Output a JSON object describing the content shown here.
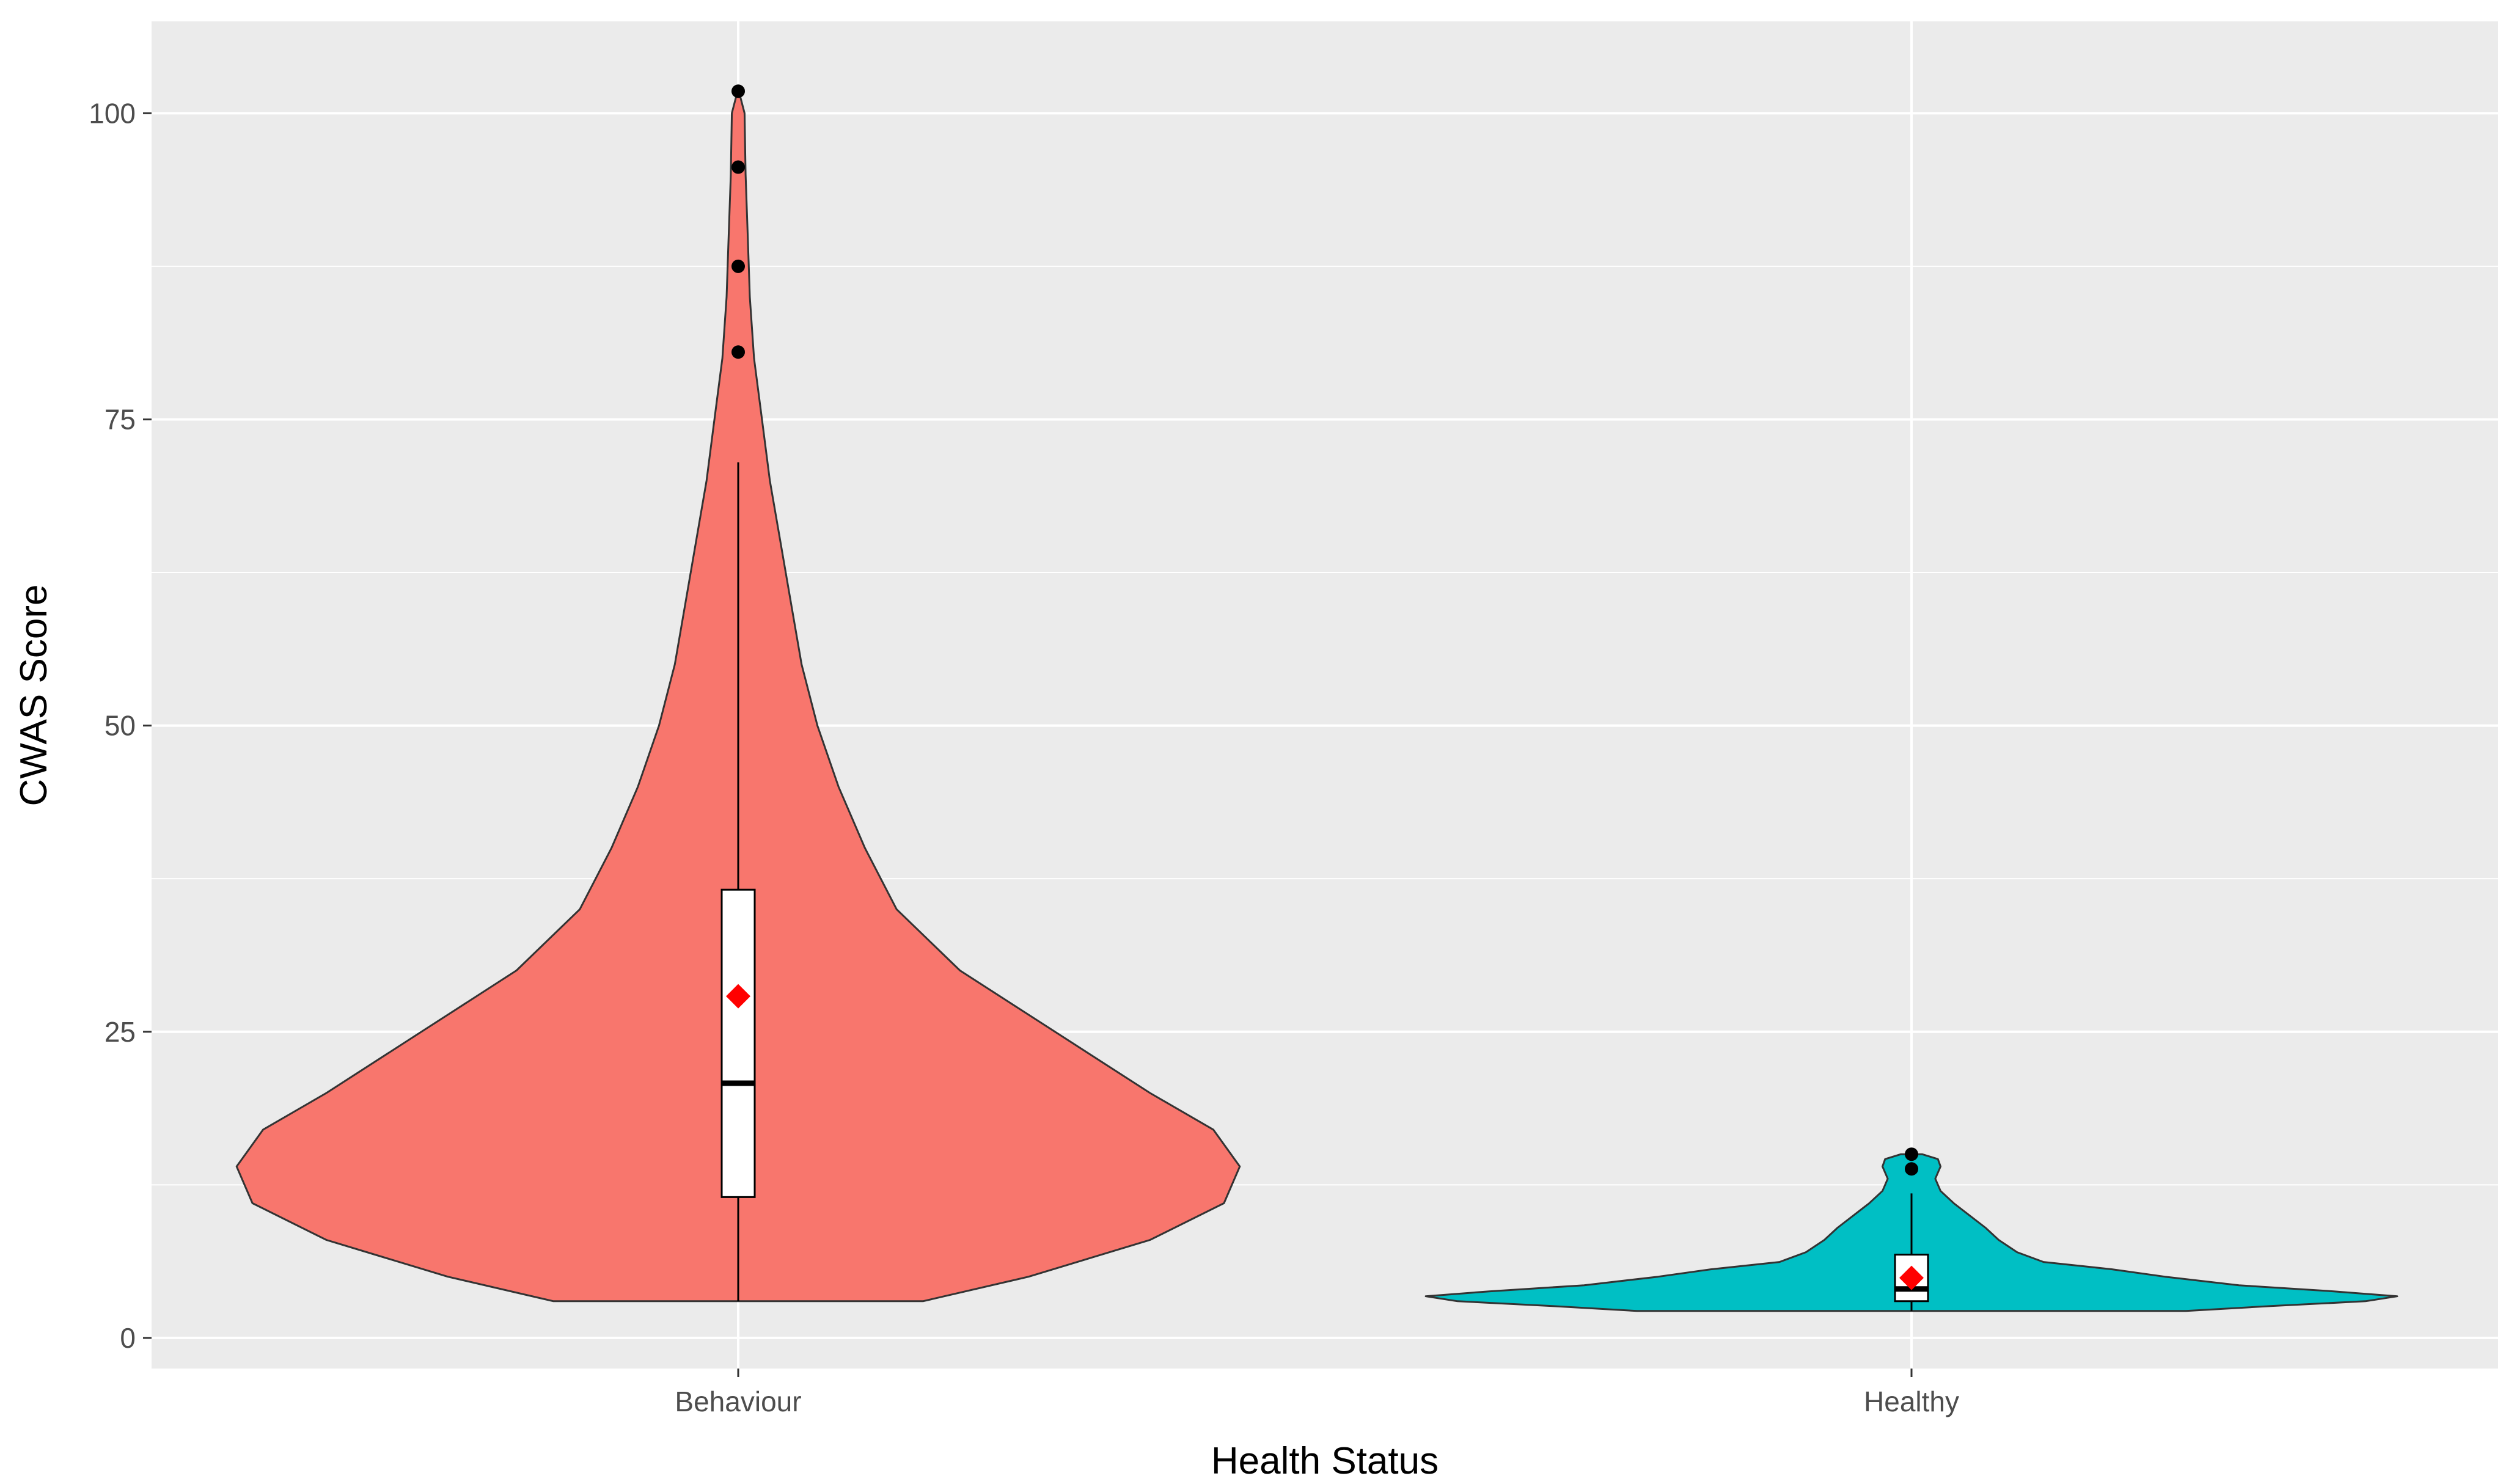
{
  "chart_data": {
    "type": "violin",
    "title": "",
    "xlabel": "Health Status",
    "ylabel": "CWAS Score",
    "ylim": [
      -2.5,
      107.5
    ],
    "y_ticks": [
      0,
      25,
      50,
      75,
      100
    ],
    "y_tick_labels": [
      "0",
      "25",
      "50",
      "75",
      "100"
    ],
    "categories": [
      "Behaviour",
      "Healthy"
    ],
    "grid": true,
    "legend": "none",
    "series": [
      {
        "category": "Behaviour",
        "color": "#F8766D",
        "density_profile": [
          [
            3,
            0.35
          ],
          [
            5,
            0.55
          ],
          [
            8,
            0.78
          ],
          [
            11,
            0.92
          ],
          [
            14,
            0.95
          ],
          [
            17,
            0.9
          ],
          [
            20,
            0.78
          ],
          [
            25,
            0.6
          ],
          [
            30,
            0.42
          ],
          [
            35,
            0.3
          ],
          [
            40,
            0.24
          ],
          [
            45,
            0.19
          ],
          [
            50,
            0.15
          ],
          [
            55,
            0.12
          ],
          [
            60,
            0.1
          ],
          [
            65,
            0.08
          ],
          [
            70,
            0.06
          ],
          [
            75,
            0.045
          ],
          [
            80,
            0.03
          ],
          [
            85,
            0.022
          ],
          [
            90,
            0.018
          ],
          [
            95,
            0.014
          ],
          [
            100,
            0.012
          ],
          [
            102,
            0.0
          ]
        ],
        "box": {
          "q1": 11.5,
          "median": 20.8,
          "q3": 36.6,
          "whisker_low": 3,
          "whisker_high": 71.5
        },
        "mean": 27.9,
        "outliers": [
          80.5,
          87.5,
          95.6,
          101.8
        ]
      },
      {
        "category": "Healthy",
        "color": "#00BFC4",
        "density_profile": [
          [
            2.2,
            0.52
          ],
          [
            2.6,
            0.68
          ],
          [
            3.0,
            0.86
          ],
          [
            3.4,
            0.92
          ],
          [
            3.8,
            0.8
          ],
          [
            4.3,
            0.62
          ],
          [
            5.0,
            0.48
          ],
          [
            5.6,
            0.38
          ],
          [
            6.2,
            0.25
          ],
          [
            7.0,
            0.2
          ],
          [
            8.0,
            0.165
          ],
          [
            9.0,
            0.14
          ],
          [
            10.0,
            0.11
          ],
          [
            11.0,
            0.08
          ],
          [
            12.0,
            0.055
          ],
          [
            13.0,
            0.045
          ],
          [
            14.0,
            0.055
          ],
          [
            14.6,
            0.05
          ],
          [
            15.0,
            0.02
          ]
        ],
        "box": {
          "q1": 3.0,
          "median": 4.0,
          "q3": 6.8,
          "whisker_low": 2.2,
          "whisker_high": 11.8
        },
        "mean": 4.9,
        "outliers": [
          13.8,
          15.0
        ]
      }
    ],
    "colors": {
      "panel_background": "#EBEBEB",
      "grid": "#FFFFFF",
      "mean_marker": "#FF0000",
      "box_fill": "#FFFFFF",
      "outline": "#333333"
    }
  }
}
